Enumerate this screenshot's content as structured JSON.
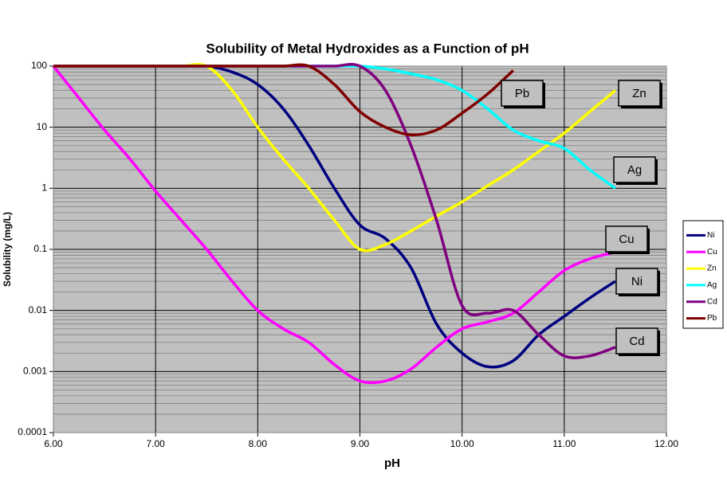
{
  "chart_data": {
    "type": "line",
    "title": "Solubility of Metal Hydroxides as a Function of pH",
    "x_label": "pH",
    "y_label": "Solubility (mg/L)",
    "log_y": true,
    "grid": true,
    "minor_grid": true,
    "legend": "right",
    "x": [
      6.0,
      6.25,
      6.5,
      6.75,
      7.0,
      7.25,
      7.5,
      7.75,
      8.0,
      8.25,
      8.5,
      8.75,
      9.0,
      9.25,
      9.5,
      9.75,
      10.0,
      10.25,
      10.5,
      10.75,
      11.0,
      11.25,
      11.5
    ],
    "xlim": [
      6,
      12
    ],
    "xticks": [
      {
        "value": 6,
        "label": "6.00"
      },
      {
        "value": 7,
        "label": "7.00"
      },
      {
        "value": 8,
        "label": "8.00"
      },
      {
        "value": 9,
        "label": "9.00"
      },
      {
        "value": 10,
        "label": "10.00"
      },
      {
        "value": 11,
        "label": "11.00"
      },
      {
        "value": 12,
        "label": "12.00"
      }
    ],
    "ylim": [
      0.0001,
      100
    ],
    "yticks": [
      0.0001,
      0.001,
      0.01,
      0.1,
      1,
      10,
      100
    ],
    "series": [
      {
        "name": "Ni",
        "color": "#000080",
        "values": [
          100,
          100,
          100,
          100,
          100,
          100,
          100,
          80,
          50,
          20,
          5,
          1,
          0.25,
          0.15,
          0.05,
          0.006,
          0.002,
          0.0012,
          0.0015,
          0.004,
          0.008,
          0.016,
          0.03
        ]
      },
      {
        "name": "Cu",
        "color": "#ff00ff",
        "values": [
          100,
          30,
          9,
          3,
          0.9,
          0.3,
          0.1,
          0.03,
          0.01,
          0.005,
          0.003,
          0.0013,
          0.0007,
          0.0007,
          0.0011,
          0.0025,
          0.005,
          0.0065,
          0.009,
          0.02,
          0.045,
          0.07,
          0.09
        ]
      },
      {
        "name": "Zn",
        "color": "#ffff00",
        "values": [
          100,
          100,
          100,
          100,
          100,
          100,
          100,
          40,
          10,
          3,
          1,
          0.3,
          0.1,
          0.12,
          0.2,
          0.35,
          0.6,
          1.1,
          2,
          4,
          8,
          18,
          40
        ]
      },
      {
        "name": "Ag",
        "color": "#00ffff",
        "values": [
          100,
          100,
          100,
          100,
          100,
          100,
          100,
          100,
          100,
          100,
          100,
          100,
          100,
          90,
          75,
          60,
          40,
          20,
          9,
          6,
          4.5,
          2,
          1
        ]
      },
      {
        "name": "Cd",
        "color": "#800080",
        "values": [
          100,
          100,
          100,
          100,
          100,
          100,
          100,
          100,
          100,
          100,
          100,
          100,
          100,
          40,
          5,
          0.3,
          0.012,
          0.009,
          0.01,
          0.004,
          0.0018,
          0.0018,
          0.0025
        ]
      },
      {
        "name": "Pb",
        "color": "#800000",
        "values": [
          100,
          100,
          100,
          100,
          100,
          100,
          100,
          100,
          100,
          100,
          100,
          50,
          18,
          10,
          7.5,
          9,
          17,
          35,
          85,
          null,
          null,
          null,
          null
        ]
      }
    ],
    "annotations": [
      "Pb",
      "Zn",
      "Ag",
      "Cu",
      "Ni",
      "Cd"
    ]
  }
}
